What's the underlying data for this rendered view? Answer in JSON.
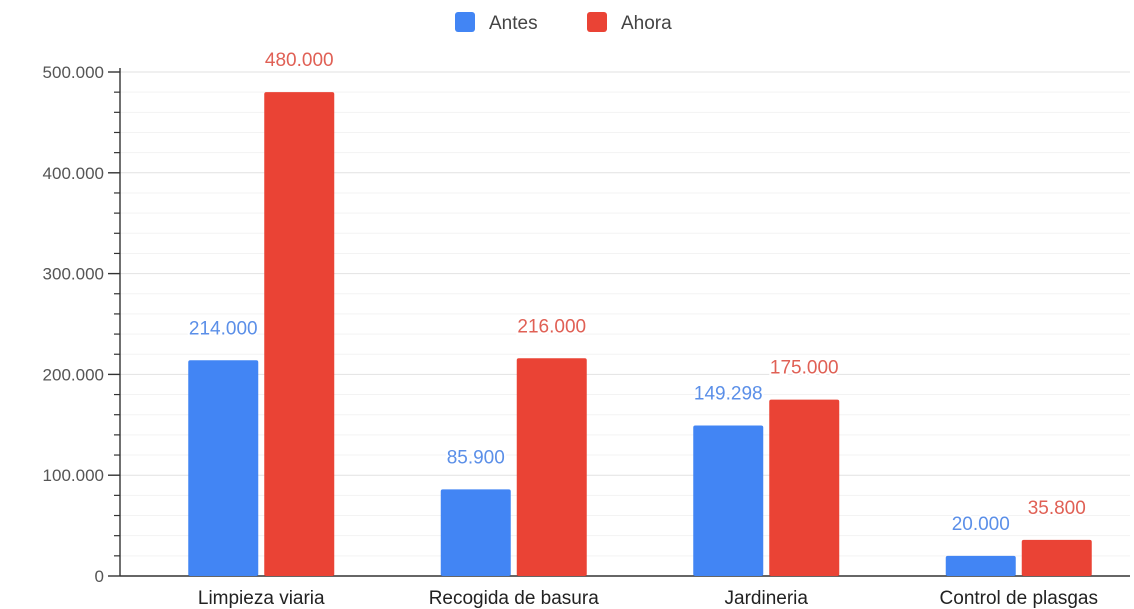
{
  "chart_data": {
    "type": "bar",
    "title": "",
    "xlabel": "",
    "ylabel": "",
    "categories": [
      "Limpieza viaria",
      "Recogida de basura",
      "Jardineria",
      "Control de plasgas"
    ],
    "series": [
      {
        "name": "Antes",
        "color": "#4285f4",
        "label_color": "#5b8fe8",
        "values": [
          214000,
          85900,
          149298,
          20000
        ],
        "labels": [
          "214.000",
          "85.900",
          "149.298",
          "20.000"
        ]
      },
      {
        "name": "Ahora",
        "color": "#ea4335",
        "label_color": "#e06055",
        "values": [
          480000,
          216000,
          175000,
          35800
        ],
        "labels": [
          "480.000",
          "216.000",
          "175.000",
          "35.800"
        ]
      }
    ],
    "ylim": [
      0,
      500000
    ],
    "y_ticks": [
      0,
      100000,
      200000,
      300000,
      400000,
      500000
    ],
    "y_tick_labels": [
      "0",
      "100.000",
      "200.000",
      "300.000",
      "400.000",
      "500.000"
    ],
    "grid": true,
    "legend_position": "top-center"
  }
}
